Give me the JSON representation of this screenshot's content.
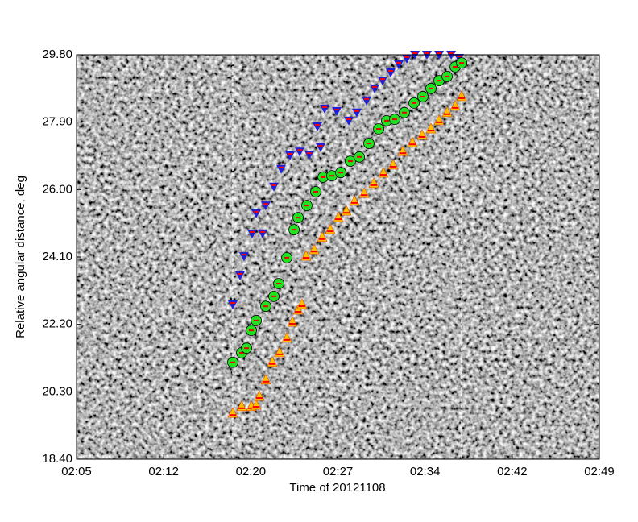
{
  "chart_data": {
    "type": "scatter",
    "xlabel": "Time of 20121108",
    "ylabel": "Relative angular distance, deg",
    "xlim": [
      5,
      49
    ],
    "ylim": [
      18.4,
      29.8
    ],
    "xticks": [
      {
        "value": 5,
        "label": "02:05"
      },
      {
        "value": 12.333,
        "label": "02:12"
      },
      {
        "value": 19.667,
        "label": "02:20"
      },
      {
        "value": 27,
        "label": "02:27"
      },
      {
        "value": 34.333,
        "label": "02:34"
      },
      {
        "value": 41.667,
        "label": "02:42"
      },
      {
        "value": 49,
        "label": "02:49"
      }
    ],
    "yticks": [
      {
        "value": 18.4,
        "label": "18.40"
      },
      {
        "value": 20.3,
        "label": "20.30"
      },
      {
        "value": 22.2,
        "label": "22.20"
      },
      {
        "value": 24.1,
        "label": "24.10"
      },
      {
        "value": 26.0,
        "label": "26.00"
      },
      {
        "value": 27.9,
        "label": "27.90"
      },
      {
        "value": 29.8,
        "label": "29.80"
      }
    ],
    "vlines": [
      18.15,
      37.41
    ],
    "series": [
      {
        "marker": "triangle-down",
        "color": "#1f1fd8",
        "x": [
          18.15,
          18.76,
          19.1,
          19.78,
          20.12,
          20.66,
          20.93,
          21.61,
          22.22,
          22.97,
          23.78,
          24.59,
          25.27,
          25.54,
          25.88,
          26.9,
          27.92,
          28.59,
          29.41,
          30.09,
          30.76,
          31.44,
          32.12,
          32.8,
          33.48,
          34.49,
          35.51,
          36.53,
          37.2
        ],
        "values": [
          22.76,
          23.58,
          24.12,
          24.76,
          25.33,
          24.76,
          25.55,
          26.08,
          26.58,
          26.96,
          27.07,
          26.98,
          27.78,
          27.19,
          28.28,
          28.21,
          27.94,
          28.17,
          28.51,
          28.85,
          29.07,
          29.3,
          29.53,
          29.69,
          29.8,
          29.8,
          29.8,
          29.8,
          29.71
        ]
      },
      {
        "marker": "circle",
        "color": "#22e022",
        "x": [
          18.15,
          18.9,
          19.31,
          19.71,
          20.12,
          20.93,
          21.61,
          22.02,
          22.7,
          23.31,
          23.65,
          24.39,
          25.14,
          25.75,
          26.49,
          27.24,
          28.05,
          28.8,
          29.61,
          30.43,
          31.1,
          31.78,
          32.59,
          33.41,
          34.15,
          34.83,
          35.51,
          36.19,
          36.87,
          37.41
        ],
        "values": [
          21.13,
          21.4,
          21.53,
          22.03,
          22.31,
          22.71,
          22.99,
          23.35,
          24.08,
          24.87,
          25.21,
          25.55,
          25.94,
          26.35,
          26.39,
          26.48,
          26.8,
          26.92,
          27.3,
          27.71,
          27.94,
          27.98,
          28.17,
          28.44,
          28.62,
          28.85,
          29.07,
          29.19,
          29.46,
          29.57
        ]
      },
      {
        "marker": "triangle-up",
        "color": "#ffc000",
        "x": [
          18.15,
          18.9,
          19.71,
          20.12,
          20.39,
          20.93,
          21.48,
          22.09,
          22.7,
          23.17,
          23.65,
          23.98,
          24.32,
          25.0,
          25.68,
          26.36,
          27.04,
          27.71,
          28.39,
          29.21,
          30.02,
          30.83,
          31.65,
          32.46,
          33.27,
          34.09,
          34.83,
          35.51,
          36.19,
          36.87,
          37.41
        ],
        "values": [
          19.69,
          19.88,
          19.88,
          19.92,
          20.17,
          20.63,
          21.13,
          21.4,
          21.81,
          22.26,
          22.6,
          22.76,
          24.12,
          24.3,
          24.65,
          24.87,
          25.21,
          25.39,
          25.67,
          25.89,
          26.17,
          26.46,
          26.69,
          27.07,
          27.32,
          27.53,
          27.71,
          27.94,
          28.17,
          28.35,
          28.62
        ]
      }
    ]
  }
}
